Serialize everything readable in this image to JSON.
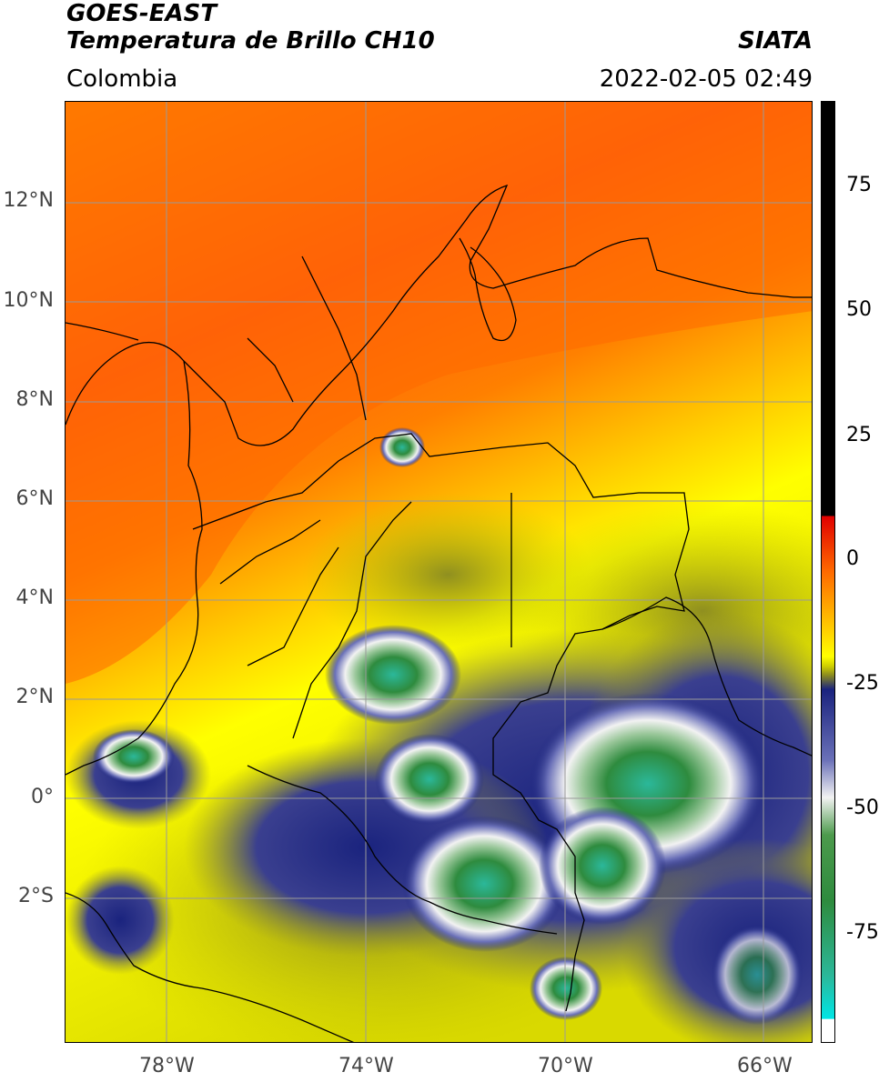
{
  "header": {
    "satellite": "GOES-EAST",
    "product": "Temperatura de Brillo CH10",
    "region": "Colombia",
    "source": "SIATA",
    "datetime": "2022-02-05 02:49"
  },
  "map": {
    "lat_labels": [
      "12°N",
      "10°N",
      "8°N",
      "6°N",
      "4°N",
      "2°N",
      "0°",
      "2°S"
    ],
    "lon_labels": [
      "78°W",
      "74°W",
      "70°W",
      "66°W"
    ],
    "gridline_color": "#9a9a9a",
    "coastline_color": "#000000"
  },
  "colorbar": {
    "tick_labels": [
      "75",
      "50",
      "25",
      "0",
      "-25",
      "-50",
      "-75"
    ],
    "colors": {
      "warm": "#ff3a00",
      "orange": "#ff8c00",
      "yellow": "#ffff00",
      "olive": "#b9b900",
      "navy": "#1a237e",
      "white": "#f2f2f2",
      "green": "#2e8b3e",
      "teal": "#2bb89a",
      "cyan": "#00e5e5",
      "black": "#000000",
      "red": "#e00000"
    }
  }
}
